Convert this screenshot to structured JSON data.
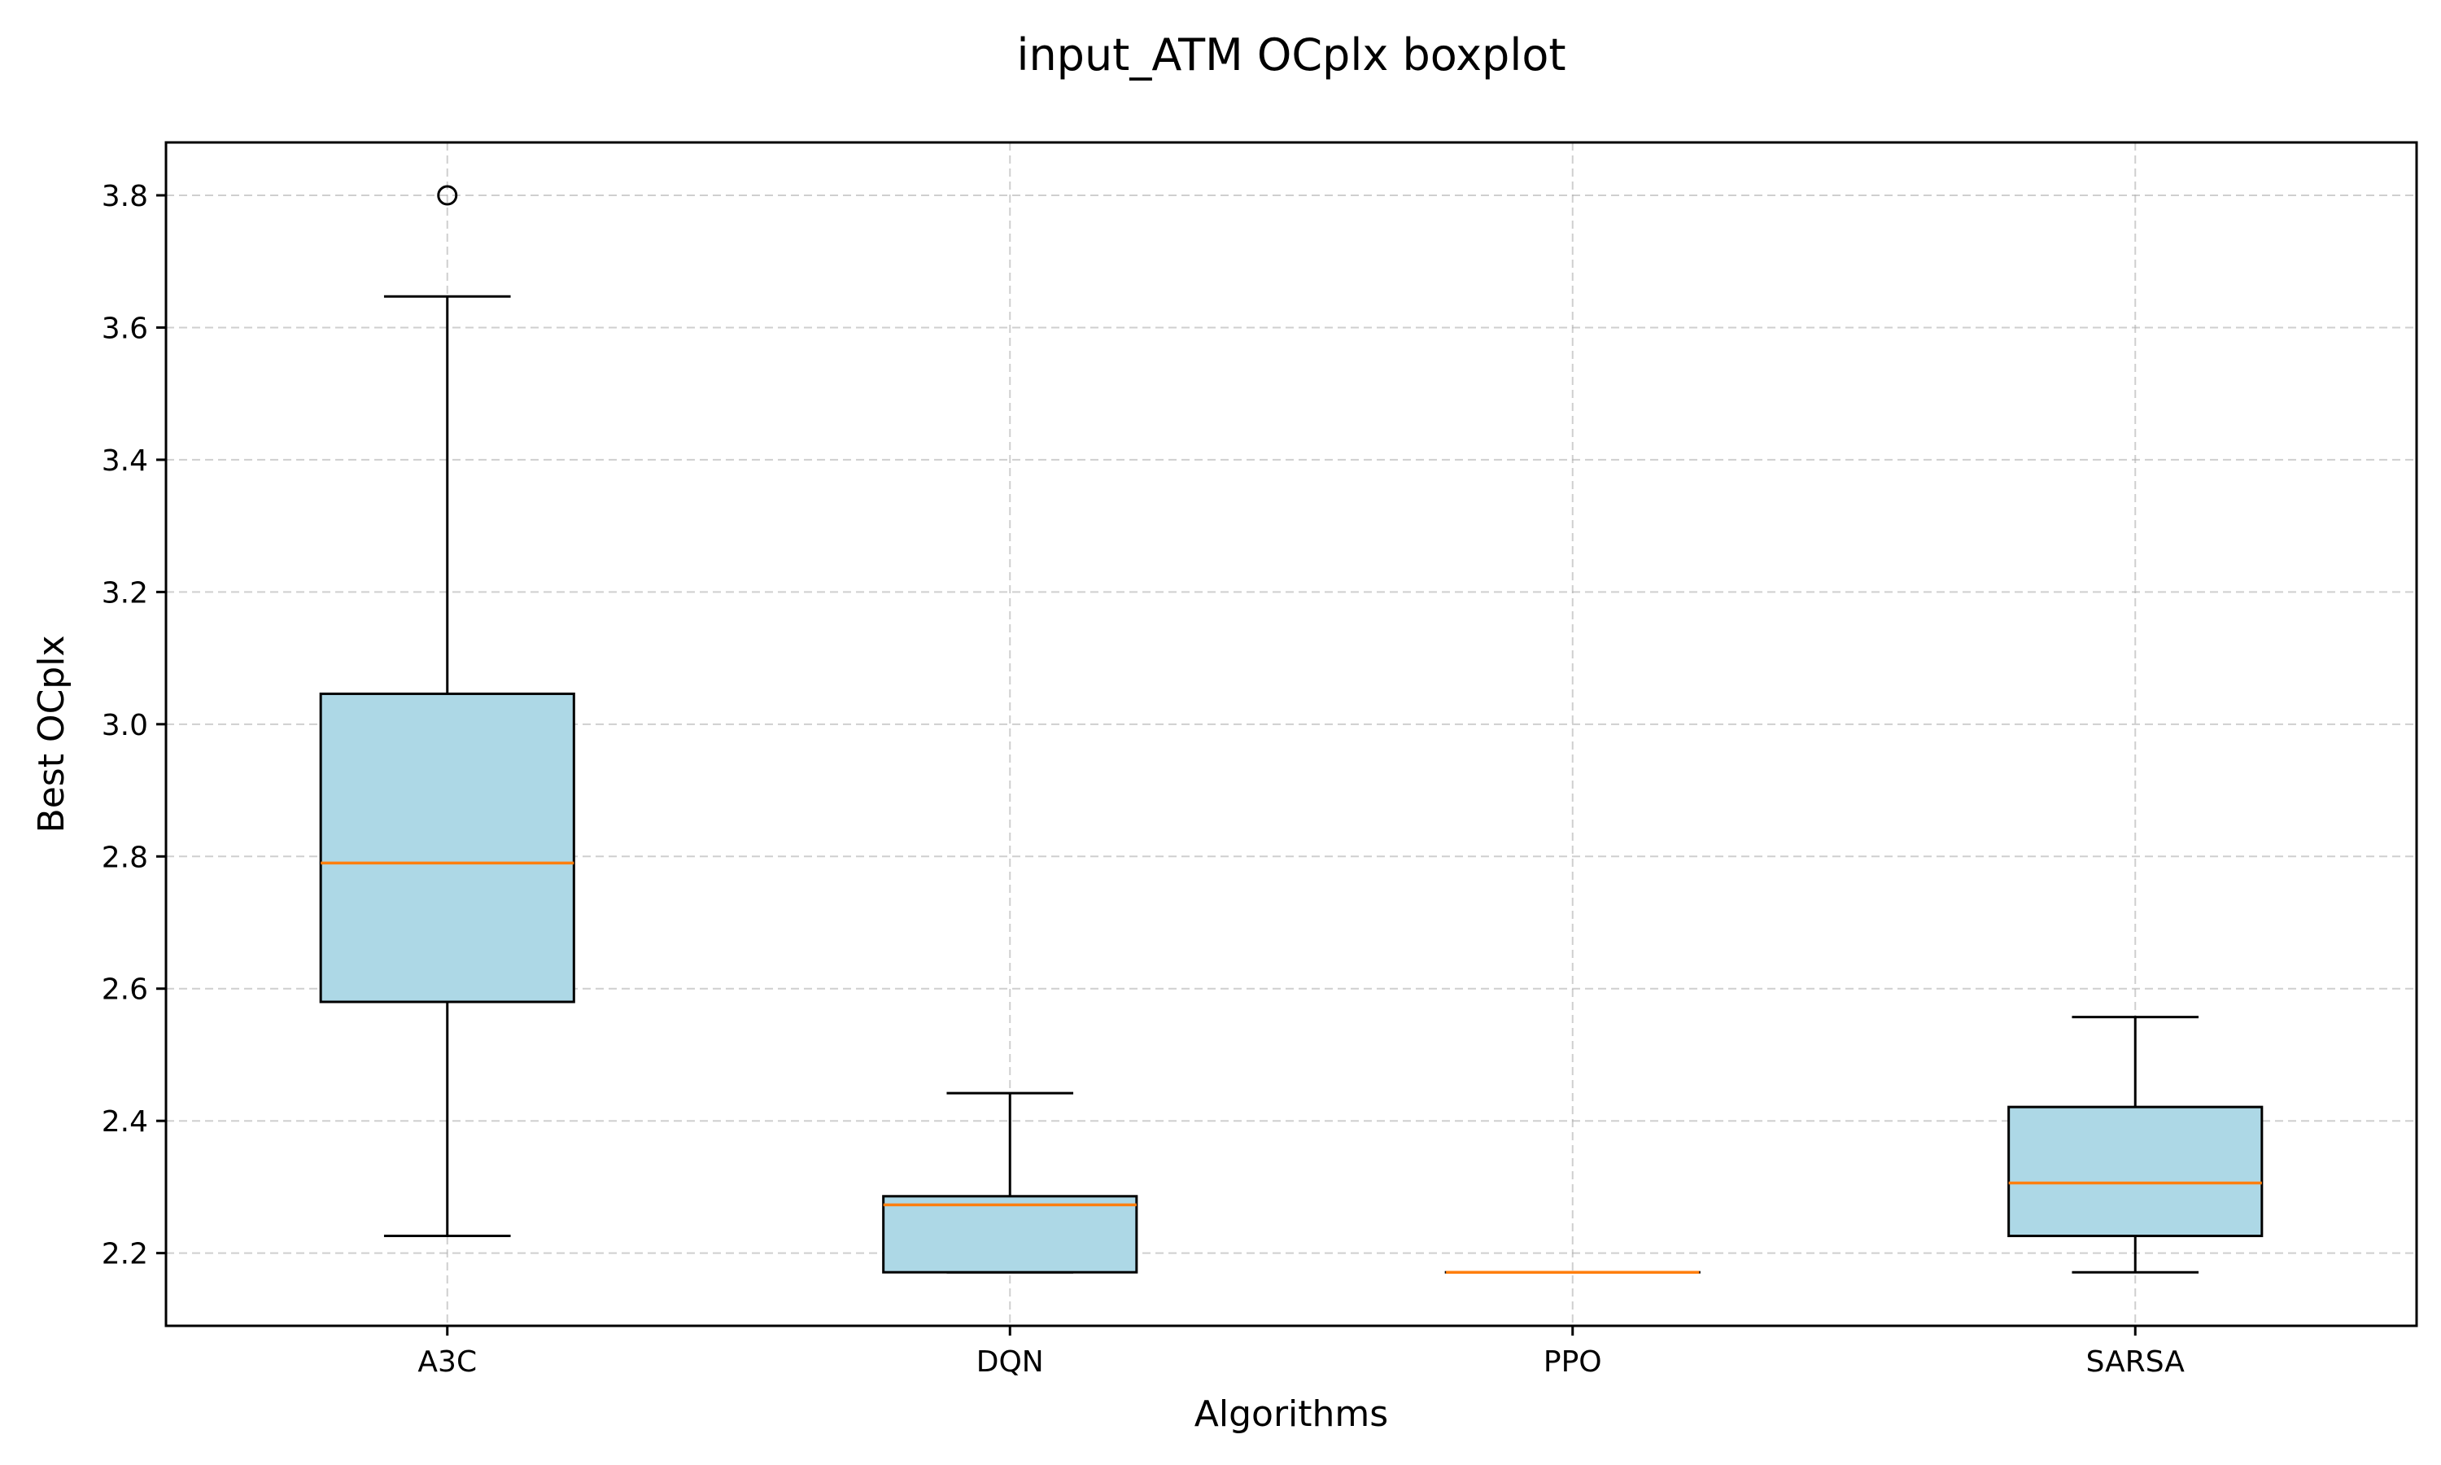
{
  "chart_data": {
    "type": "boxplot",
    "title": "input_ATM OCplx boxplot",
    "xlabel": "Algorithms",
    "ylabel": "Best OCplx",
    "ylim": [
      2.09,
      3.88
    ],
    "yticks": [
      "2.2",
      "2.4",
      "2.6",
      "2.8",
      "3.0",
      "3.2",
      "3.4",
      "3.6",
      "3.8"
    ],
    "grid": true,
    "colors": {
      "box_fill": "#add8e6",
      "median": "#ff7f0e",
      "edge": "#000000"
    },
    "categories": [
      "A3C",
      "DQN",
      "PPO",
      "SARSA"
    ],
    "boxes": [
      {
        "name": "A3C",
        "whislo": 2.226,
        "q1": 2.58,
        "med": 2.79,
        "q3": 3.046,
        "whishi": 3.647,
        "fliers": [
          3.8
        ]
      },
      {
        "name": "DQN",
        "whislo": 2.171,
        "q1": 2.171,
        "med": 2.273,
        "q3": 2.286,
        "whishi": 2.442,
        "fliers": []
      },
      {
        "name": "PPO",
        "whislo": 2.171,
        "q1": 2.171,
        "med": 2.171,
        "q3": 2.171,
        "whishi": 2.171,
        "fliers": []
      },
      {
        "name": "SARSA",
        "whislo": 2.171,
        "q1": 2.226,
        "med": 2.306,
        "q3": 2.421,
        "whishi": 2.557,
        "fliers": []
      }
    ]
  }
}
